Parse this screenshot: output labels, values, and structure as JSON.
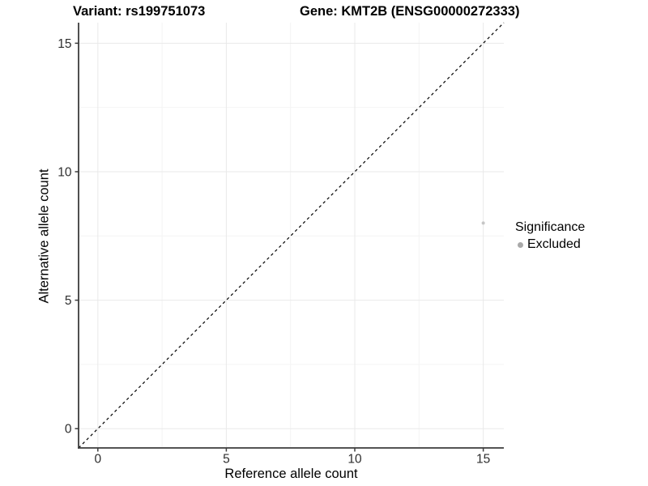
{
  "header": {
    "title_variant": "Variant: rs199751073",
    "title_gene": "Gene: KMT2B (ENSG00000272333)"
  },
  "chart_data": {
    "type": "scatter",
    "title": {
      "variant": "Variant: rs199751073",
      "gene": "Gene: KMT2B (ENSG00000272333)"
    },
    "xlabel": "Reference allele count",
    "ylabel": "Alternative allele count",
    "xlim": [
      -0.75,
      15.8
    ],
    "ylim": [
      -0.75,
      15.8
    ],
    "x_ticks": [
      0,
      5,
      10,
      15
    ],
    "y_ticks": [
      0,
      5,
      10,
      15
    ],
    "x_minor_ticks": [
      2.5,
      7.5,
      12.5
    ],
    "y_minor_ticks": [
      2.5,
      7.5,
      12.5
    ],
    "grid": true,
    "points": [
      {
        "x": 15,
        "y": 8,
        "significance": "Excluded",
        "color": "#c6c6c6"
      }
    ],
    "reference_line": {
      "kind": "identity",
      "style": "dashed",
      "color": "#000000"
    },
    "legend": {
      "title": "Significance",
      "position": "right",
      "items": [
        {
          "label": "Excluded",
          "color": "#a9a9a9",
          "marker": "circle"
        }
      ]
    }
  },
  "colors": {
    "background": "#ffffff",
    "axis_line": "#3c3c3c",
    "tick_label": "#2e2e2e",
    "grid_major": "#e9e9e9",
    "grid_minor": "#f4f4f4",
    "identity_line": "#000000",
    "point": "#c6c6c6",
    "legend_point": "#a9a9a9"
  }
}
